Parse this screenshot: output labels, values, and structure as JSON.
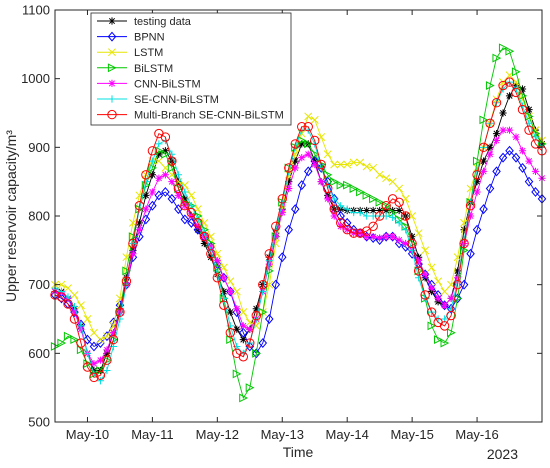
{
  "chart_data": {
    "type": "line",
    "xlabel": "Time",
    "ylabel": "Upper reservoir capacity/m³",
    "ylim": [
      500,
      1100
    ],
    "yticks": [
      500,
      600,
      700,
      800,
      900,
      1000,
      1100
    ],
    "xlim": [
      0,
      7.5
    ],
    "x_tick_values": [
      0.5,
      1.5,
      2.5,
      3.5,
      4.5,
      5.5,
      6.5
    ],
    "x_tick_labels": [
      "May-10",
      "May-11",
      "May-12",
      "May-13",
      "May-14",
      "May-15",
      "May-16"
    ],
    "year_label": "2023",
    "legend_position": "top-left",
    "grid": false,
    "x": [
      0,
      0.1,
      0.2,
      0.3,
      0.4,
      0.5,
      0.6,
      0.7,
      0.8,
      0.9,
      1.0,
      1.1,
      1.2,
      1.3,
      1.4,
      1.5,
      1.6,
      1.7,
      1.8,
      1.9,
      2.0,
      2.1,
      2.2,
      2.3,
      2.4,
      2.5,
      2.6,
      2.7,
      2.8,
      2.9,
      3.0,
      3.1,
      3.2,
      3.3,
      3.4,
      3.5,
      3.6,
      3.7,
      3.8,
      3.9,
      4.0,
      4.1,
      4.2,
      4.3,
      4.4,
      4.5,
      4.6,
      4.7,
      4.8,
      4.9,
      5.0,
      5.1,
      5.2,
      5.3,
      5.4,
      5.5,
      5.6,
      5.7,
      5.8,
      5.9,
      6.0,
      6.1,
      6.2,
      6.3,
      6.4,
      6.5,
      6.6,
      6.7,
      6.8,
      6.9,
      7.0,
      7.1,
      7.2,
      7.3,
      7.4,
      7.5
    ],
    "series": [
      {
        "name": "testing data",
        "color": "#000000",
        "marker": "star",
        "values": [
          690,
          690,
          680,
          665,
          640,
          600,
          575,
          575,
          600,
          630,
          665,
          710,
          750,
          790,
          830,
          860,
          890,
          895,
          880,
          850,
          825,
          800,
          780,
          760,
          740,
          715,
          690,
          660,
          635,
          620,
          635,
          665,
          700,
          740,
          775,
          810,
          850,
          880,
          905,
          905,
          880,
          850,
          830,
          810,
          810,
          808,
          808,
          808,
          808,
          808,
          808,
          808,
          808,
          808,
          800,
          770,
          740,
          710,
          690,
          675,
          670,
          680,
          720,
          780,
          820,
          850,
          880,
          900,
          920,
          950,
          975,
          990,
          985,
          955,
          925,
          905
        ]
      },
      {
        "name": "BPNN",
        "color": "#0000ff",
        "marker": "diamond",
        "values": [
          685,
          680,
          672,
          660,
          642,
          620,
          610,
          615,
          625,
          645,
          670,
          700,
          740,
          770,
          795,
          815,
          830,
          835,
          825,
          810,
          795,
          790,
          780,
          770,
          755,
          730,
          710,
          690,
          660,
          630,
          610,
          600,
          615,
          650,
          700,
          740,
          780,
          810,
          845,
          865,
          880,
          870,
          850,
          825,
          800,
          790,
          780,
          775,
          770,
          768,
          765,
          770,
          770,
          760,
          755,
          745,
          730,
          715,
          700,
          685,
          670,
          665,
          680,
          700,
          745,
          780,
          810,
          840,
          865,
          885,
          895,
          885,
          870,
          850,
          835,
          825
        ]
      },
      {
        "name": "LSTM",
        "color": "#e6e600",
        "marker": "x",
        "values": [
          700,
          700,
          695,
          685,
          670,
          650,
          630,
          620,
          625,
          640,
          680,
          740,
          790,
          830,
          860,
          880,
          880,
          870,
          860,
          850,
          845,
          830,
          810,
          790,
          770,
          745,
          725,
          705,
          690,
          660,
          645,
          640,
          660,
          700,
          760,
          810,
          860,
          890,
          920,
          945,
          940,
          915,
          890,
          875,
          875,
          875,
          878,
          878,
          872,
          870,
          860,
          855,
          850,
          840,
          825,
          800,
          775,
          750,
          725,
          705,
          690,
          700,
          740,
          790,
          840,
          870,
          900,
          935,
          970,
          995,
          1005,
          995,
          970,
          945,
          925,
          910
        ]
      },
      {
        "name": "BiLSTM",
        "color": "#00c800",
        "marker": "triangle-right",
        "values": [
          610,
          615,
          625,
          620,
          605,
          585,
          570,
          575,
          590,
          620,
          660,
          720,
          770,
          810,
          845,
          870,
          895,
          890,
          870,
          840,
          820,
          815,
          800,
          780,
          760,
          725,
          680,
          620,
          570,
          535,
          550,
          600,
          660,
          720,
          770,
          820,
          870,
          900,
          910,
          905,
          890,
          875,
          860,
          850,
          845,
          845,
          840,
          835,
          830,
          825,
          820,
          815,
          805,
          795,
          785,
          760,
          720,
          680,
          640,
          620,
          615,
          630,
          680,
          750,
          820,
          880,
          940,
          990,
          1030,
          1045,
          1040,
          1010,
          975,
          945,
          920,
          905
        ]
      },
      {
        "name": "CNN-BiLSTM",
        "color": "#ff00ff",
        "marker": "star",
        "values": [
          690,
          688,
          680,
          660,
          635,
          600,
          585,
          590,
          605,
          630,
          660,
          700,
          745,
          780,
          810,
          835,
          855,
          860,
          850,
          830,
          815,
          800,
          785,
          770,
          755,
          735,
          710,
          690,
          665,
          640,
          635,
          650,
          690,
          730,
          770,
          805,
          840,
          870,
          885,
          890,
          875,
          850,
          825,
          800,
          785,
          780,
          775,
          775,
          770,
          770,
          768,
          770,
          770,
          765,
          760,
          750,
          735,
          715,
          695,
          680,
          670,
          680,
          710,
          760,
          800,
          835,
          865,
          890,
          910,
          925,
          925,
          915,
          895,
          880,
          865,
          855
        ]
      },
      {
        "name": "SE-CNN-BiLSTM",
        "color": "#00e0e0",
        "marker": "plus",
        "values": [
          695,
          690,
          682,
          668,
          640,
          600,
          570,
          560,
          575,
          610,
          650,
          700,
          760,
          810,
          850,
          880,
          905,
          910,
          890,
          860,
          835,
          815,
          795,
          775,
          750,
          715,
          680,
          640,
          610,
          600,
          615,
          650,
          690,
          735,
          780,
          820,
          865,
          900,
          925,
          925,
          905,
          870,
          845,
          825,
          815,
          810,
          805,
          805,
          800,
          800,
          800,
          800,
          798,
          790,
          780,
          750,
          710,
          680,
          660,
          650,
          650,
          665,
          705,
          765,
          820,
          865,
          900,
          935,
          965,
          985,
          995,
          985,
          960,
          935,
          915,
          900
        ]
      },
      {
        "name": "Multi-Branch SE-CNN-BiLSTM",
        "color": "#ff0000",
        "marker": "circle",
        "values": [
          685,
          682,
          672,
          650,
          615,
          580,
          565,
          568,
          590,
          620,
          660,
          705,
          760,
          815,
          860,
          895,
          920,
          915,
          880,
          840,
          815,
          805,
          790,
          770,
          745,
          710,
          670,
          630,
          600,
          595,
          615,
          655,
          700,
          745,
          785,
          825,
          870,
          905,
          930,
          930,
          910,
          875,
          840,
          810,
          790,
          780,
          775,
          775,
          778,
          785,
          800,
          815,
          825,
          820,
          800,
          760,
          720,
          685,
          660,
          645,
          640,
          655,
          700,
          760,
          815,
          860,
          900,
          935,
          965,
          990,
          995,
          980,
          955,
          925,
          905,
          895
        ]
      }
    ]
  }
}
